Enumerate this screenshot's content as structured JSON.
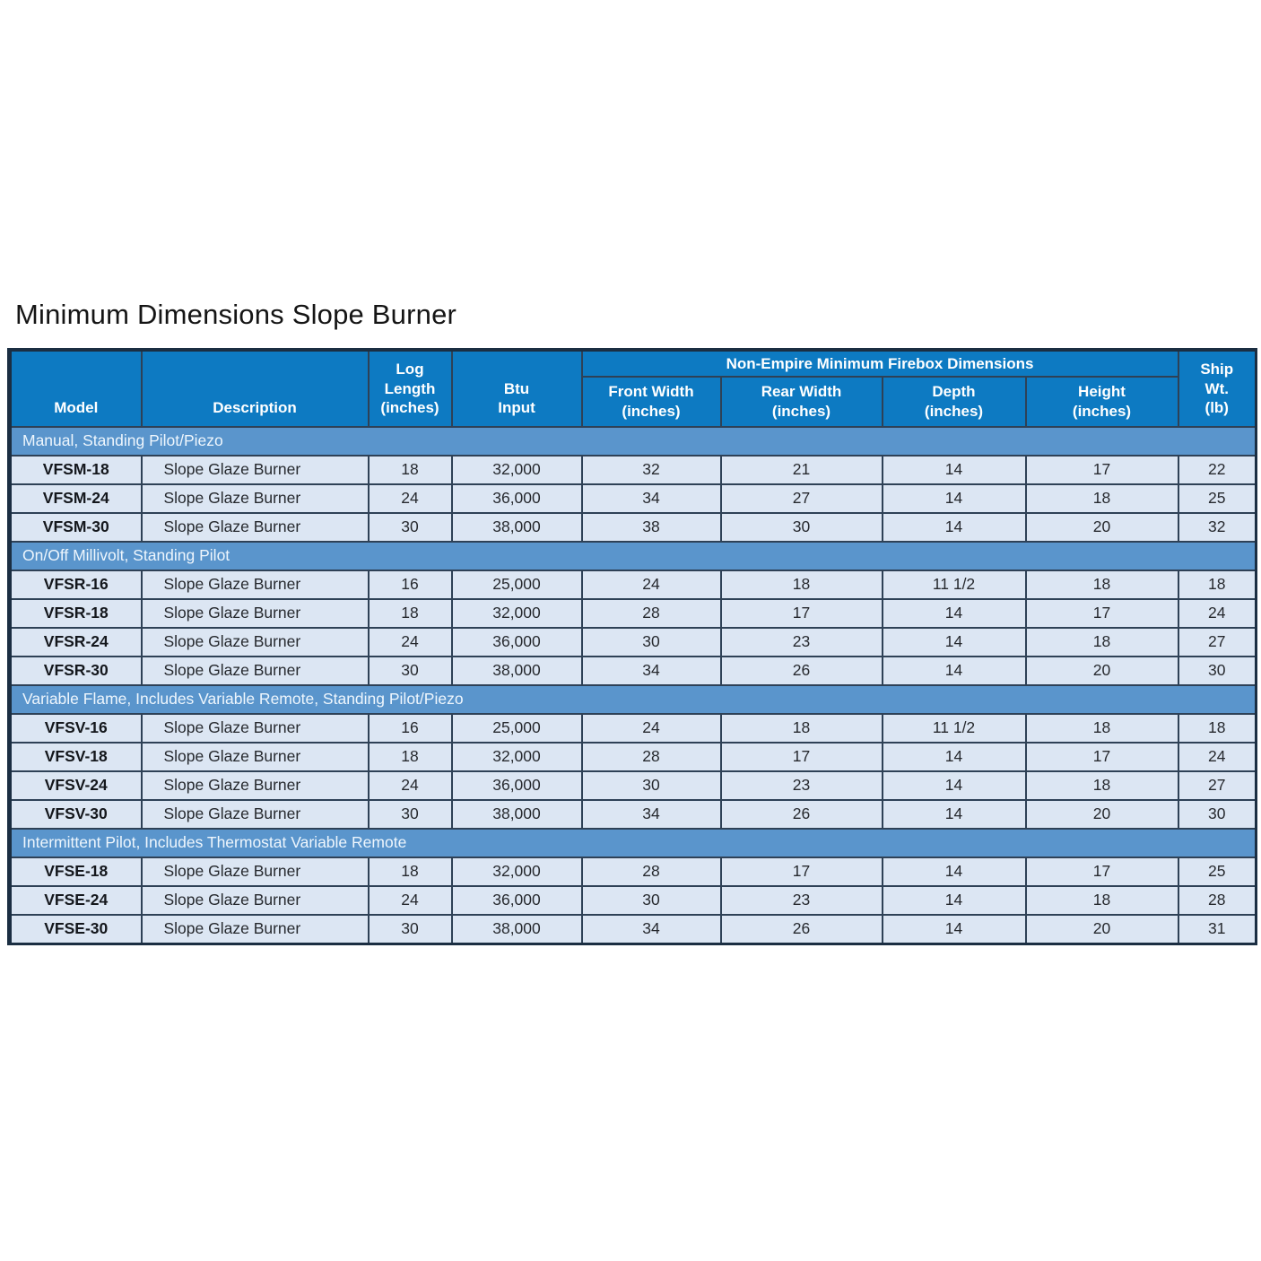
{
  "page": {
    "title": "Minimum Dimensions Slope Burner"
  },
  "colors": {
    "header_bg": "#0d7ac2",
    "section_band_bg": "#5a95cc",
    "row_bg": "#dce6f3",
    "grid_line": "#2e4156",
    "outer_border": "#1b2e42",
    "header_text": "#ffffff",
    "cell_text": "#26292e"
  },
  "table": {
    "group_header": "Non-Empire Minimum Firebox Dimensions",
    "columns": [
      {
        "id": "model",
        "label": "Model"
      },
      {
        "id": "description",
        "label": "Description"
      },
      {
        "id": "log-length",
        "label": "Log\nLength\n(inches)"
      },
      {
        "id": "btu-input",
        "label": "Btu\nInput"
      },
      {
        "id": "front-width",
        "label": "Front Width\n(inches)"
      },
      {
        "id": "rear-width",
        "label": "Rear Width\n(inches)"
      },
      {
        "id": "depth",
        "label": "Depth\n(inches)"
      },
      {
        "id": "height",
        "label": "Height\n(inches)"
      },
      {
        "id": "ship-wt",
        "label": "Ship\nWt.\n(lb)"
      }
    ],
    "sections": [
      {
        "title": "Manual, Standing Pilot/Piezo",
        "rows": [
          [
            "VFSM-18",
            "Slope Glaze Burner",
            "18",
            "32,000",
            "32",
            "21",
            "14",
            "17",
            "22"
          ],
          [
            "VFSM-24",
            "Slope Glaze Burner",
            "24",
            "36,000",
            "34",
            "27",
            "14",
            "18",
            "25"
          ],
          [
            "VFSM-30",
            "Slope Glaze Burner",
            "30",
            "38,000",
            "38",
            "30",
            "14",
            "20",
            "32"
          ]
        ]
      },
      {
        "title": "On/Off Millivolt, Standing Pilot",
        "rows": [
          [
            "VFSR-16",
            "Slope Glaze Burner",
            "16",
            "25,000",
            "24",
            "18",
            "11 1/2",
            "18",
            "18"
          ],
          [
            "VFSR-18",
            "Slope Glaze Burner",
            "18",
            "32,000",
            "28",
            "17",
            "14",
            "17",
            "24"
          ],
          [
            "VFSR-24",
            "Slope Glaze Burner",
            "24",
            "36,000",
            "30",
            "23",
            "14",
            "18",
            "27"
          ],
          [
            "VFSR-30",
            "Slope Glaze Burner",
            "30",
            "38,000",
            "34",
            "26",
            "14",
            "20",
            "30"
          ]
        ]
      },
      {
        "title": "Variable Flame, Includes Variable Remote, Standing Pilot/Piezo",
        "rows": [
          [
            "VFSV-16",
            "Slope Glaze Burner",
            "16",
            "25,000",
            "24",
            "18",
            "11 1/2",
            "18",
            "18"
          ],
          [
            "VFSV-18",
            "Slope Glaze Burner",
            "18",
            "32,000",
            "28",
            "17",
            "14",
            "17",
            "24"
          ],
          [
            "VFSV-24",
            "Slope Glaze Burner",
            "24",
            "36,000",
            "30",
            "23",
            "14",
            "18",
            "27"
          ],
          [
            "VFSV-30",
            "Slope Glaze Burner",
            "30",
            "38,000",
            "34",
            "26",
            "14",
            "20",
            "30"
          ]
        ]
      },
      {
        "title": "Intermittent Pilot, Includes Thermostat Variable Remote",
        "rows": [
          [
            "VFSE-18",
            "Slope Glaze Burner",
            "18",
            "32,000",
            "28",
            "17",
            "14",
            "17",
            "25"
          ],
          [
            "VFSE-24",
            "Slope Glaze Burner",
            "24",
            "36,000",
            "30",
            "23",
            "14",
            "18",
            "28"
          ],
          [
            "VFSE-30",
            "Slope Glaze Burner",
            "30",
            "38,000",
            "34",
            "26",
            "14",
            "20",
            "31"
          ]
        ]
      }
    ]
  }
}
